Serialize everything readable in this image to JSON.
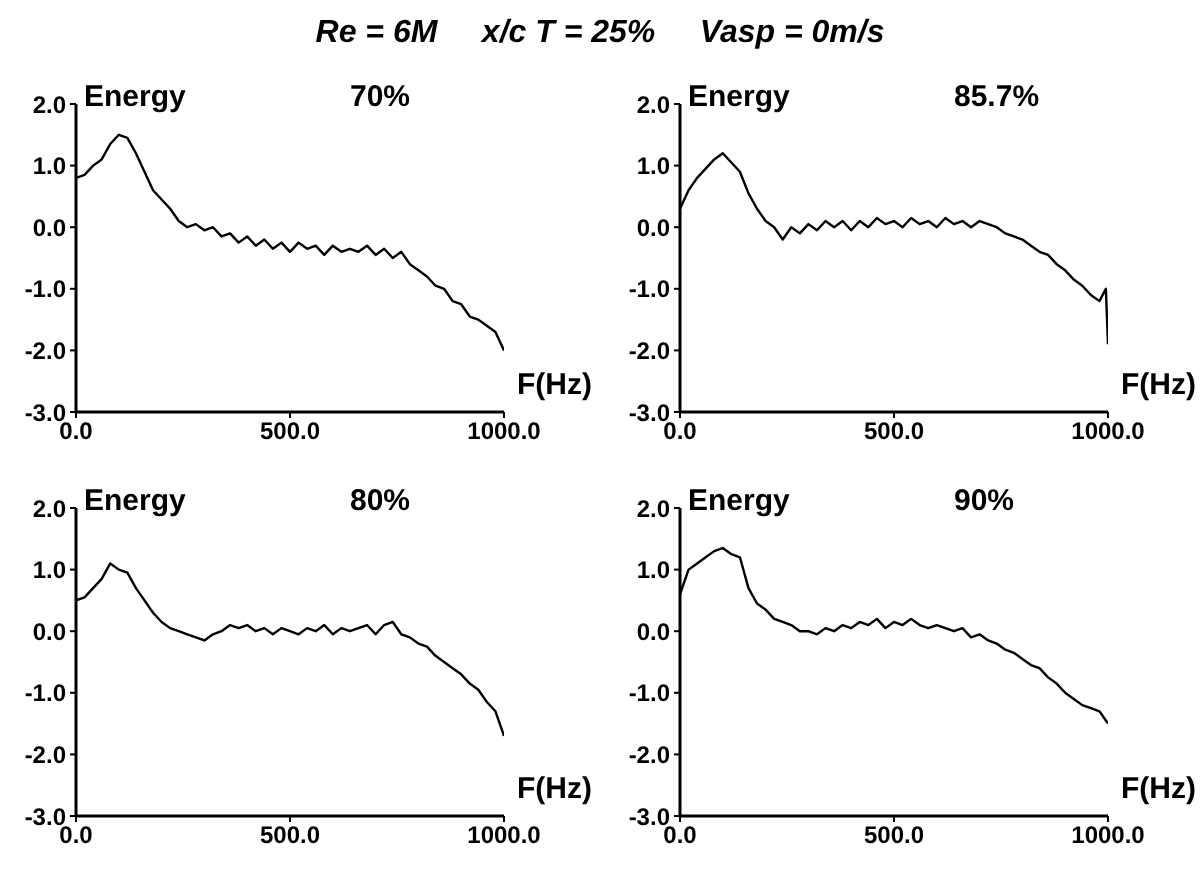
{
  "chart_data": [
    {
      "type": "line",
      "title": "Re = 6M     x/c T = 25%     Vasp = 0m/s",
      "ylabel": "Energy",
      "xlabel": "F(Hz)",
      "annotations": [
        "70%"
      ],
      "color": "#000000",
      "xlim": [
        0,
        1000
      ],
      "xticks": [
        {
          "value": 0,
          "label": "0.0"
        },
        {
          "value": 500,
          "label": "500.0"
        },
        {
          "value": 1000,
          "label": "1000.0"
        }
      ],
      "ylim": [
        -3,
        2
      ],
      "yticks": [
        {
          "value": -3,
          "label": "-3.0"
        },
        {
          "value": -2,
          "label": "-2.0"
        },
        {
          "value": -1,
          "label": "-1.0"
        },
        {
          "value": 0,
          "label": "0.0"
        },
        {
          "value": 1,
          "label": "1.0"
        },
        {
          "value": 2,
          "label": "2.0"
        }
      ],
      "x": [
        0,
        20,
        40,
        60,
        80,
        100,
        120,
        140,
        160,
        180,
        200,
        220,
        240,
        260,
        280,
        300,
        320,
        340,
        360,
        380,
        400,
        420,
        440,
        460,
        480,
        500,
        520,
        540,
        560,
        580,
        600,
        620,
        640,
        660,
        680,
        700,
        720,
        740,
        760,
        780,
        800,
        820,
        840,
        860,
        880,
        900,
        920,
        940,
        960,
        980,
        1000
      ],
      "values": [
        0.8,
        0.85,
        1.0,
        1.1,
        1.35,
        1.5,
        1.45,
        1.2,
        0.9,
        0.6,
        0.45,
        0.3,
        0.1,
        0.0,
        0.05,
        -0.05,
        0.0,
        -0.15,
        -0.1,
        -0.25,
        -0.15,
        -0.3,
        -0.2,
        -0.35,
        -0.25,
        -0.4,
        -0.25,
        -0.35,
        -0.3,
        -0.45,
        -0.3,
        -0.4,
        -0.35,
        -0.4,
        -0.3,
        -0.45,
        -0.35,
        -0.5,
        -0.4,
        -0.6,
        -0.7,
        -0.8,
        -0.95,
        -1.0,
        -1.2,
        -1.25,
        -1.45,
        -1.5,
        -1.6,
        -1.7,
        -2.0
      ]
    },
    {
      "type": "line",
      "ylabel": "Energy",
      "xlabel": "F(Hz)",
      "annotations": [
        "85.7%"
      ],
      "color": "#000000",
      "xlim": [
        0,
        1000
      ],
      "xticks": [
        {
          "value": 0,
          "label": "0.0"
        },
        {
          "value": 500,
          "label": "500.0"
        },
        {
          "value": 1000,
          "label": "1000.0"
        }
      ],
      "ylim": [
        -3,
        2
      ],
      "yticks": [
        {
          "value": -3,
          "label": "-3.0"
        },
        {
          "value": -2,
          "label": "-2.0"
        },
        {
          "value": -1,
          "label": "-1.0"
        },
        {
          "value": 0,
          "label": "0.0"
        },
        {
          "value": 1,
          "label": "1.0"
        },
        {
          "value": 2,
          "label": "2.0"
        }
      ],
      "x": [
        0,
        20,
        40,
        60,
        80,
        100,
        120,
        140,
        160,
        180,
        200,
        220,
        240,
        260,
        280,
        300,
        320,
        340,
        360,
        380,
        400,
        420,
        440,
        460,
        480,
        500,
        520,
        540,
        560,
        580,
        600,
        620,
        640,
        660,
        680,
        700,
        720,
        740,
        760,
        780,
        800,
        820,
        840,
        860,
        880,
        900,
        920,
        940,
        960,
        980,
        995,
        1000
      ],
      "values": [
        0.3,
        0.6,
        0.8,
        0.95,
        1.1,
        1.2,
        1.05,
        0.9,
        0.55,
        0.3,
        0.1,
        0.0,
        -0.2,
        0.0,
        -0.1,
        0.05,
        -0.05,
        0.1,
        0.0,
        0.1,
        -0.05,
        0.1,
        0.0,
        0.15,
        0.05,
        0.1,
        0.0,
        0.15,
        0.05,
        0.1,
        0.0,
        0.15,
        0.05,
        0.1,
        0.0,
        0.1,
        0.05,
        0.0,
        -0.1,
        -0.15,
        -0.2,
        -0.3,
        -0.4,
        -0.45,
        -0.6,
        -0.7,
        -0.85,
        -0.95,
        -1.1,
        -1.2,
        -1.0,
        -1.9
      ]
    },
    {
      "type": "line",
      "ylabel": "Energy",
      "xlabel": "F(Hz)",
      "annotations": [
        "80%"
      ],
      "color": "#000000",
      "xlim": [
        0,
        1000
      ],
      "xticks": [
        {
          "value": 0,
          "label": "0.0"
        },
        {
          "value": 500,
          "label": "500.0"
        },
        {
          "value": 1000,
          "label": "1000.0"
        }
      ],
      "ylim": [
        -3,
        2
      ],
      "yticks": [
        {
          "value": -3,
          "label": "-3.0"
        },
        {
          "value": -2,
          "label": "-2.0"
        },
        {
          "value": -1,
          "label": "-1.0"
        },
        {
          "value": 0,
          "label": "0.0"
        },
        {
          "value": 1,
          "label": "1.0"
        },
        {
          "value": 2,
          "label": "2.0"
        }
      ],
      "x": [
        0,
        20,
        40,
        60,
        80,
        100,
        120,
        140,
        160,
        180,
        200,
        220,
        240,
        260,
        280,
        300,
        320,
        340,
        360,
        380,
        400,
        420,
        440,
        460,
        480,
        500,
        520,
        540,
        560,
        580,
        600,
        620,
        640,
        660,
        680,
        700,
        720,
        740,
        760,
        780,
        800,
        820,
        840,
        860,
        880,
        900,
        920,
        940,
        960,
        980,
        1000
      ],
      "values": [
        0.5,
        0.55,
        0.7,
        0.85,
        1.1,
        1.0,
        0.95,
        0.7,
        0.5,
        0.3,
        0.15,
        0.05,
        0.0,
        -0.05,
        -0.1,
        -0.15,
        -0.05,
        0.0,
        0.1,
        0.05,
        0.1,
        0.0,
        0.05,
        -0.05,
        0.05,
        0.0,
        -0.05,
        0.05,
        0.0,
        0.1,
        -0.05,
        0.05,
        0.0,
        0.05,
        0.1,
        -0.05,
        0.1,
        0.15,
        -0.05,
        -0.1,
        -0.2,
        -0.25,
        -0.4,
        -0.5,
        -0.6,
        -0.7,
        -0.85,
        -0.95,
        -1.15,
        -1.3,
        -1.7
      ]
    },
    {
      "type": "line",
      "ylabel": "Energy",
      "xlabel": "F(Hz)",
      "annotations": [
        "90%"
      ],
      "color": "#000000",
      "xlim": [
        0,
        1000
      ],
      "xticks": [
        {
          "value": 0,
          "label": "0.0"
        },
        {
          "value": 500,
          "label": "500.0"
        },
        {
          "value": 1000,
          "label": "1000.0"
        }
      ],
      "ylim": [
        -3,
        2
      ],
      "yticks": [
        {
          "value": -3,
          "label": "-3.0"
        },
        {
          "value": -2,
          "label": "-2.0"
        },
        {
          "value": -1,
          "label": "-1.0"
        },
        {
          "value": 0,
          "label": "0.0"
        },
        {
          "value": 1,
          "label": "1.0"
        },
        {
          "value": 2,
          "label": "2.0"
        }
      ],
      "x": [
        0,
        20,
        40,
        60,
        80,
        100,
        120,
        140,
        160,
        180,
        200,
        220,
        240,
        260,
        280,
        300,
        320,
        340,
        360,
        380,
        400,
        420,
        440,
        460,
        480,
        500,
        520,
        540,
        560,
        580,
        600,
        620,
        640,
        660,
        680,
        700,
        720,
        740,
        760,
        780,
        800,
        820,
        840,
        860,
        880,
        900,
        920,
        940,
        960,
        980,
        1000
      ],
      "values": [
        0.6,
        1.0,
        1.1,
        1.2,
        1.3,
        1.35,
        1.25,
        1.2,
        0.7,
        0.45,
        0.35,
        0.2,
        0.15,
        0.1,
        0.0,
        0.0,
        -0.05,
        0.05,
        0.0,
        0.1,
        0.05,
        0.15,
        0.1,
        0.2,
        0.05,
        0.15,
        0.1,
        0.2,
        0.1,
        0.05,
        0.1,
        0.05,
        0.0,
        0.05,
        -0.1,
        -0.05,
        -0.15,
        -0.2,
        -0.3,
        -0.35,
        -0.45,
        -0.55,
        -0.6,
        -0.75,
        -0.85,
        -1.0,
        -1.1,
        -1.2,
        -1.25,
        -1.3,
        -1.5
      ]
    }
  ]
}
